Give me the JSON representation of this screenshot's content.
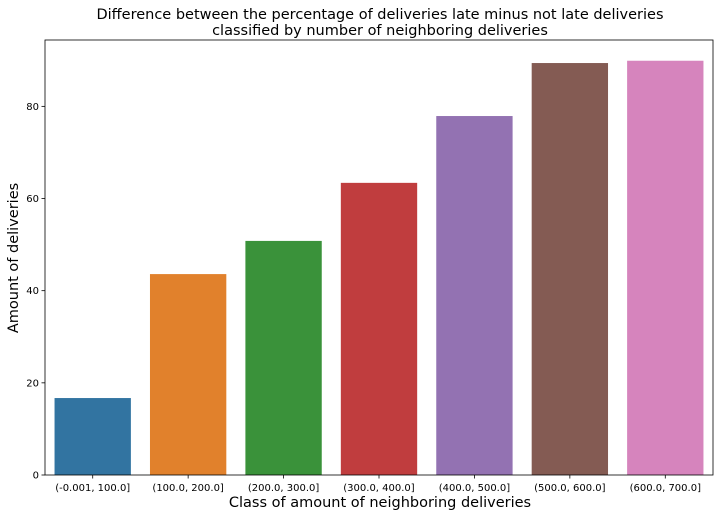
{
  "chart_data": {
    "type": "bar",
    "title_line1": "Difference between the percentage of deliveries late minus not late deliveries",
    "title_line2": "classified by number of neighboring deliveries",
    "xlabel": "Class of amount of neighboring deliveries",
    "ylabel": "Amount of deliveries",
    "categories": [
      "(-0.001, 100.0]",
      "(100.0, 200.0]",
      "(200.0, 300.0]",
      "(300.0, 400.0]",
      "(400.0, 500.0]",
      "(500.0, 600.0]",
      "(600.0, 700.0]"
    ],
    "values": [
      16.7,
      43.6,
      50.8,
      63.4,
      77.9,
      89.4,
      89.9
    ],
    "colors": [
      "#3274a1",
      "#e1812c",
      "#3a923a",
      "#c03d3e",
      "#9372b2",
      "#845b53",
      "#d684bd"
    ],
    "ylim": [
      0,
      94.4
    ],
    "yticks": [
      0,
      20,
      40,
      60,
      80
    ],
    "grid": false,
    "legend": "none"
  }
}
